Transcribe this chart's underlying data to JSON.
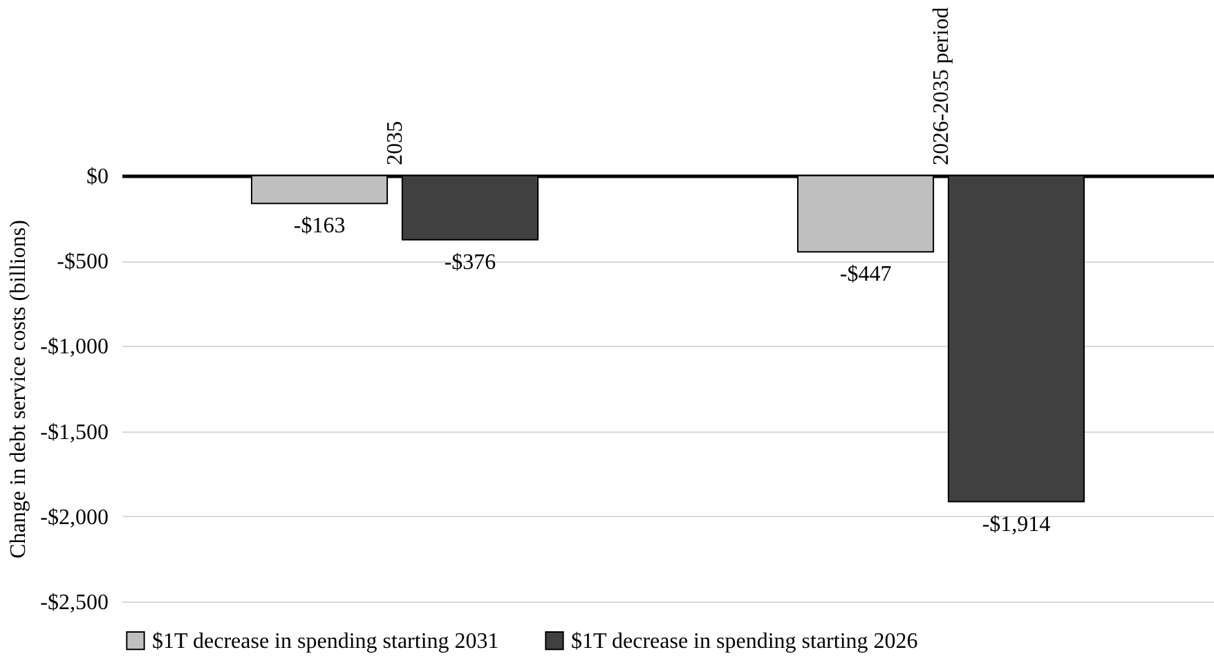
{
  "chart_data": {
    "type": "bar",
    "ylabel": "Change in debt service costs (billions)",
    "categories": [
      "2035",
      "2026-2035 period"
    ],
    "series": [
      {
        "name": "$1T decrease in spending starting 2031",
        "color": "#bfbfbf",
        "values": [
          -163,
          -447
        ],
        "value_labels": [
          "-$163",
          "-$447"
        ]
      },
      {
        "name": "$1T decrease in spending starting 2026",
        "color": "#404040",
        "values": [
          -376,
          -1914
        ],
        "value_labels": [
          "-$376",
          "-$1,914"
        ]
      }
    ],
    "ylim": [
      -2500,
      0
    ],
    "yticks": [
      {
        "value": 0,
        "label": "$0"
      },
      {
        "value": -500,
        "label": "-$500"
      },
      {
        "value": -1000,
        "label": "-$1,000"
      },
      {
        "value": -1500,
        "label": "-$1,500"
      },
      {
        "value": -2000,
        "label": "-$2,000"
      },
      {
        "value": -2500,
        "label": "-$2,500"
      }
    ],
    "grid": "y",
    "legend": "bottom"
  }
}
